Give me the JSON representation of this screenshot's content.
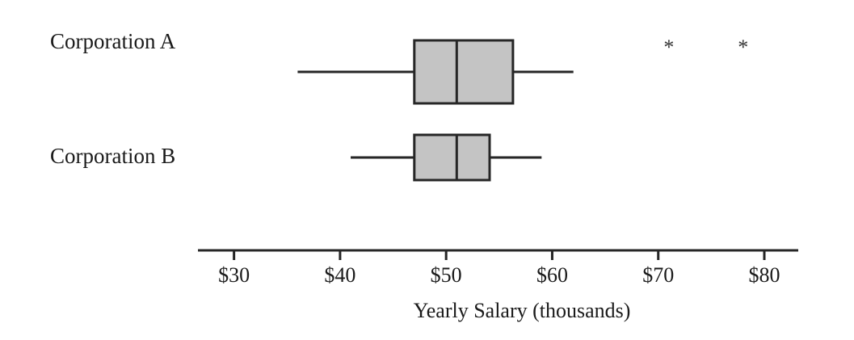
{
  "chart_data": {
    "type": "boxplot",
    "title": "",
    "xlabel": "Yearly Salary (thousands)",
    "ylabel": "",
    "xlim": [
      26.6,
      83.2
    ],
    "xticks": [
      30,
      40,
      50,
      60,
      70,
      80
    ],
    "xtick_labels": [
      "$30",
      "$40",
      "$50",
      "$60",
      "$70",
      "$80"
    ],
    "grid": false,
    "legend": "none",
    "box_color": "#c4c4c4",
    "line_color": "#262626",
    "series": [
      {
        "name": "Corporation A",
        "min": 36,
        "q1": 47,
        "median": 51,
        "q3": 56.3,
        "max": 62,
        "outliers": [
          71,
          78
        ]
      },
      {
        "name": "Corporation B",
        "min": 41,
        "q1": 47,
        "median": 51,
        "q3": 54.1,
        "max": 59,
        "outliers": []
      }
    ]
  }
}
